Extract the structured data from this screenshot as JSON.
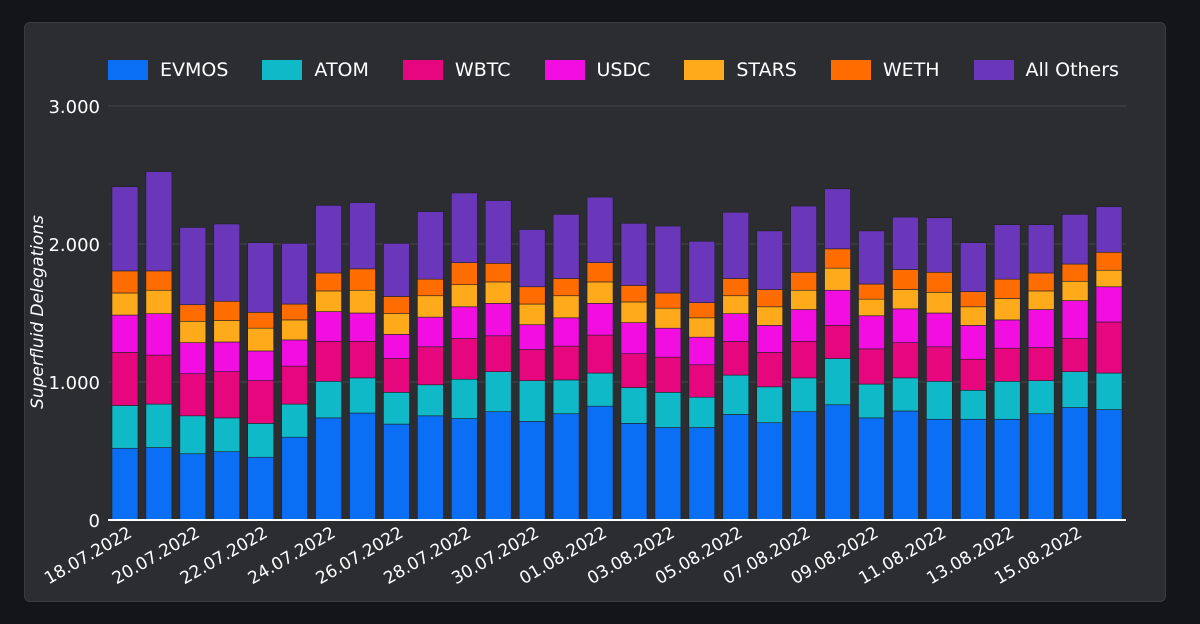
{
  "chart_data": {
    "type": "bar",
    "stacked": true,
    "title": "",
    "xlabel": "",
    "ylabel": "Superfluid Delegations",
    "ylim": [
      0,
      3000
    ],
    "yticks": [
      0,
      1000,
      2000,
      3000
    ],
    "ytick_labels": [
      "0",
      "1.000",
      "2.000",
      "3.000"
    ],
    "grid": true,
    "legend_position": "top",
    "categories": [
      "18.07.2022",
      "19.07.2022",
      "20.07.2022",
      "21.07.2022",
      "22.07.2022",
      "23.07.2022",
      "24.07.2022",
      "25.07.2022",
      "26.07.2022",
      "27.07.2022",
      "28.07.2022",
      "29.07.2022",
      "30.07.2022",
      "31.07.2022",
      "01.08.2022",
      "02.08.2022",
      "03.08.2022",
      "04.08.2022",
      "05.08.2022",
      "06.08.2022",
      "07.08.2022",
      "08.08.2022",
      "09.08.2022",
      "10.08.2022",
      "11.08.2022",
      "12.08.2022",
      "13.08.2022",
      "14.08.2022",
      "15.08.2022",
      "16.08.2022"
    ],
    "xtick_labels": [
      "18.07.2022",
      "20.07.2022",
      "22.07.2022",
      "24.07.2022",
      "26.07.2022",
      "28.07.2022",
      "30.07.2022",
      "01.08.2022",
      "03.08.2022",
      "05.08.2022",
      "07.08.2022",
      "09.08.2022",
      "11.08.2022",
      "13.08.2022",
      "15.08.2022"
    ],
    "series": [
      {
        "name": "EVMOS",
        "color": "#0b6ff5",
        "values": [
          520,
          525,
          480,
          495,
          455,
          600,
          740,
          775,
          695,
          755,
          735,
          785,
          715,
          770,
          825,
          700,
          670,
          670,
          765,
          705,
          785,
          835,
          740,
          790,
          730,
          730,
          730,
          770,
          815,
          800
        ]
      },
      {
        "name": "ATOM",
        "color": "#0fb9c7",
        "values": [
          310,
          315,
          275,
          245,
          245,
          240,
          265,
          255,
          230,
          225,
          285,
          290,
          295,
          245,
          240,
          260,
          255,
          220,
          285,
          260,
          245,
          335,
          245,
          240,
          275,
          210,
          275,
          240,
          260,
          265
        ]
      },
      {
        "name": "WBTC",
        "color": "#e6077f",
        "values": [
          385,
          355,
          305,
          335,
          310,
          275,
          290,
          265,
          245,
          275,
          295,
          260,
          225,
          245,
          275,
          245,
          255,
          235,
          245,
          250,
          265,
          240,
          255,
          255,
          250,
          225,
          240,
          240,
          240,
          370
        ]
      },
      {
        "name": "USDC",
        "color": "#f20de0",
        "values": [
          270,
          300,
          225,
          215,
          215,
          190,
          215,
          205,
          175,
          215,
          230,
          235,
          180,
          205,
          230,
          225,
          210,
          200,
          200,
          195,
          230,
          255,
          240,
          245,
          245,
          245,
          205,
          275,
          275,
          255
        ]
      },
      {
        "name": "STARS",
        "color": "#ffaa1a",
        "values": [
          160,
          170,
          155,
          155,
          165,
          145,
          150,
          165,
          150,
          155,
          160,
          155,
          150,
          160,
          155,
          150,
          145,
          140,
          130,
          135,
          140,
          160,
          120,
          140,
          150,
          135,
          155,
          135,
          140,
          120
        ]
      },
      {
        "name": "WETH",
        "color": "#ff6d00",
        "values": [
          160,
          140,
          120,
          140,
          115,
          115,
          130,
          155,
          125,
          120,
          160,
          135,
          125,
          125,
          140,
          120,
          110,
          110,
          125,
          125,
          130,
          140,
          110,
          145,
          145,
          110,
          140,
          130,
          125,
          130
        ]
      },
      {
        "name": "All Others",
        "color": "#6a37bb",
        "values": [
          610,
          720,
          560,
          560,
          505,
          440,
          490,
          480,
          385,
          490,
          505,
          455,
          415,
          465,
          475,
          450,
          485,
          445,
          480,
          425,
          480,
          435,
          385,
          380,
          395,
          355,
          395,
          350,
          360,
          330
        ]
      }
    ]
  }
}
